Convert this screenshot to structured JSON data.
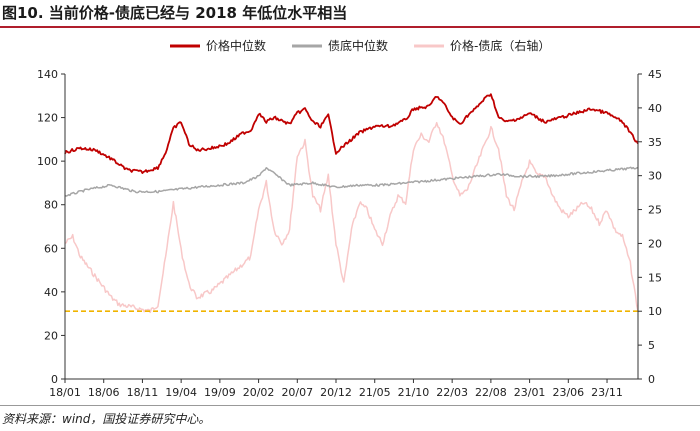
{
  "figure": {
    "title": "图10. 当前价格-债底已经与 2018 年低位水平相当",
    "source": "资料来源：wind，国投证券研究中心。"
  },
  "colors": {
    "price_median": "#c00000",
    "bond_floor_median": "#a6a6a6",
    "price_minus_floor": "#f8c8c8",
    "reference_line": "#f0b400",
    "title_rule": "#b01e2c"
  },
  "chart_data": {
    "type": "line",
    "title": "",
    "x_ticks": [
      "18/01",
      "18/06",
      "18/11",
      "19/04",
      "19/09",
      "20/02",
      "20/07",
      "20/12",
      "21/05",
      "21/10",
      "22/03",
      "22/08",
      "23/01",
      "23/06",
      "23/11"
    ],
    "y_left": {
      "lim": [
        0,
        140
      ],
      "ticks": [
        0,
        20,
        40,
        60,
        80,
        100,
        120,
        140
      ]
    },
    "y_right": {
      "lim": [
        0,
        45
      ],
      "ticks": [
        0,
        5,
        10,
        15,
        20,
        25,
        30,
        35,
        40,
        45
      ]
    },
    "legend": {
      "position": "top-center"
    },
    "x_range": [
      "2018-01",
      "2024-03"
    ],
    "series": [
      {
        "name": "价格中位数",
        "axis": "left",
        "color": "#c00000",
        "x": [
          "2018-01",
          "2018-03",
          "2018-05",
          "2018-07",
          "2018-09",
          "2018-11",
          "2019-01",
          "2019-02",
          "2019-03",
          "2019-04",
          "2019-05",
          "2019-06",
          "2019-08",
          "2019-10",
          "2019-12",
          "2020-01",
          "2020-02",
          "2020-03",
          "2020-04",
          "2020-06",
          "2020-07",
          "2020-08",
          "2020-09",
          "2020-10",
          "2020-11",
          "2020-12",
          "2021-01",
          "2021-03",
          "2021-05",
          "2021-07",
          "2021-09",
          "2021-10",
          "2021-12",
          "2022-01",
          "2022-02",
          "2022-03",
          "2022-04",
          "2022-05",
          "2022-06",
          "2022-07",
          "2022-08",
          "2022-09",
          "2022-10",
          "2022-12",
          "2023-01",
          "2023-03",
          "2023-05",
          "2023-07",
          "2023-09",
          "2023-11",
          "2024-01",
          "2024-02",
          "2024-03"
        ],
        "values": [
          104,
          106,
          105,
          101,
          96,
          95,
          97,
          104,
          115,
          118,
          108,
          105,
          106,
          108,
          113,
          114,
          122,
          118,
          120,
          117,
          122,
          124,
          118,
          116,
          121,
          104,
          107,
          113,
          116,
          116,
          119,
          124,
          125,
          130,
          126,
          120,
          117,
          121,
          124,
          128,
          131,
          120,
          118,
          120,
          122,
          118,
          120,
          122,
          124,
          122,
          118,
          113,
          108
        ]
      },
      {
        "name": "债底中位数",
        "axis": "left",
        "color": "#a6a6a6",
        "x": [
          "2018-01",
          "2018-04",
          "2018-07",
          "2018-10",
          "2019-01",
          "2019-06",
          "2019-12",
          "2020-02",
          "2020-03",
          "2020-06",
          "2020-09",
          "2020-12",
          "2021-03",
          "2021-06",
          "2021-09",
          "2021-12",
          "2022-03",
          "2022-06",
          "2022-09",
          "2022-12",
          "2023-03",
          "2023-06",
          "2023-09",
          "2023-12",
          "2024-03"
        ],
        "values": [
          84,
          87,
          89,
          86,
          86,
          88,
          90,
          93,
          97,
          89,
          90,
          88,
          89,
          89,
          90,
          91,
          92,
          93,
          94,
          93,
          93,
          94,
          95,
          96,
          97
        ]
      },
      {
        "name": "价格-债底（右轴）",
        "axis": "right",
        "color": "#f8c8c8",
        "x": [
          "2018-01",
          "2018-02",
          "2018-03",
          "2018-05",
          "2018-07",
          "2018-08",
          "2018-10",
          "2018-12",
          "2019-01",
          "2019-02",
          "2019-03",
          "2019-04",
          "2019-05",
          "2019-06",
          "2019-08",
          "2019-10",
          "2019-11",
          "2019-12",
          "2020-01",
          "2020-02",
          "2020-03",
          "2020-04",
          "2020-05",
          "2020-06",
          "2020-07",
          "2020-08",
          "2020-09",
          "2020-10",
          "2020-11",
          "2020-12",
          "2021-01",
          "2021-02",
          "2021-03",
          "2021-04",
          "2021-05",
          "2021-06",
          "2021-07",
          "2021-08",
          "2021-09",
          "2021-10",
          "2021-11",
          "2021-12",
          "2022-01",
          "2022-02",
          "2022-03",
          "2022-04",
          "2022-05",
          "2022-06",
          "2022-07",
          "2022-08",
          "2022-09",
          "2022-10",
          "2022-11",
          "2022-12",
          "2023-01",
          "2023-02",
          "2023-03",
          "2023-04",
          "2023-05",
          "2023-06",
          "2023-07",
          "2023-08",
          "2023-09",
          "2023-10",
          "2023-11",
          "2023-12",
          "2024-01",
          "2024-02",
          "2024-03"
        ],
        "values": [
          20,
          21,
          18,
          15,
          12,
          11,
          10.5,
          10,
          11,
          18,
          26,
          19,
          14,
          12,
          13,
          15,
          16,
          17,
          18,
          25,
          29,
          22,
          20,
          22,
          33,
          35,
          27,
          25,
          30,
          20,
          14,
          22,
          26,
          25,
          22,
          20,
          24,
          27,
          26,
          34,
          36,
          35,
          38,
          35,
          30,
          27,
          28,
          31,
          34,
          37,
          34,
          27,
          25,
          29,
          32,
          30,
          30,
          27,
          25,
          24,
          25,
          26,
          25,
          23,
          25,
          22,
          21,
          17,
          10
        ]
      },
      {
        "name": "",
        "axis": "right",
        "color": "#f0b400",
        "style": "dashed",
        "x": [
          "2018-01",
          "2024-03"
        ],
        "values": [
          10,
          10
        ]
      }
    ]
  }
}
